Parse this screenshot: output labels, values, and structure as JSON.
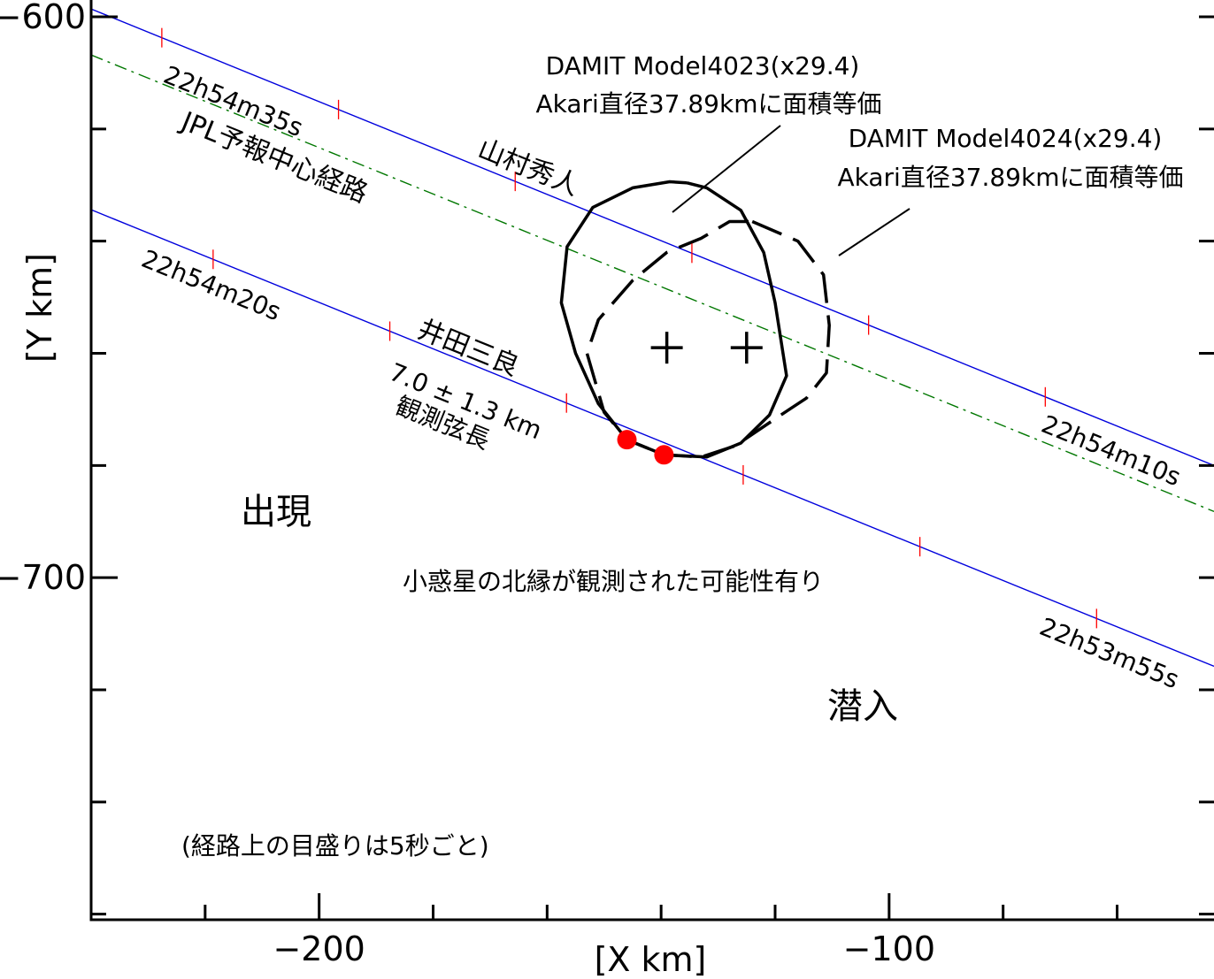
{
  "chart_data": {
    "type": "scatter",
    "xlabel": "[X  km]",
    "ylabel": "[Y  km]",
    "xlim": [
      -240,
      -43
    ],
    "ylim": [
      -761,
      -597
    ],
    "x_ticks": [
      -200,
      -100
    ],
    "y_ticks": [
      -600,
      -700
    ],
    "x_minor_step": 20,
    "y_minor_step": 20,
    "colors": {
      "path": "#0000dd",
      "jpl": "#007700",
      "tick": "#ff0000",
      "outline": "#000000",
      "point": "#ff0000"
    },
    "paths": [
      {
        "label": "山村秀人",
        "color": "#0000dd",
        "dash": "solid",
        "p1": [
          -240,
          -598.6
        ],
        "p2": [
          -43,
          -680.0
        ],
        "ticks_x": [
          -227.6,
          -196.6,
          -165.6,
          -134.6,
          -103.6,
          -72.6,
          -41.6
        ],
        "time_labels": [
          {
            "text": "22h54m35s",
            "at_x": -222
          },
          {
            "text": "22h54m10s",
            "at_x": -74
          }
        ]
      },
      {
        "label": "JPL予報中心経路",
        "color": "#007700",
        "dash": "dashdot",
        "p1": [
          -240,
          -606.8
        ],
        "p2": [
          -43,
          -688.2
        ],
        "ticks_x": [],
        "time_labels": []
      },
      {
        "label": "井田三良",
        "color": "#0000dd",
        "dash": "solid",
        "p1": [
          -240,
          -634.4
        ],
        "p2": [
          -43,
          -715.8
        ],
        "ticks_x": [
          -218.6,
          -187.6,
          -156.6,
          -125.6,
          -94.6,
          -63.6
        ],
        "time_labels": [
          {
            "text": "22h54m20s",
            "at_x": -212
          },
          {
            "text": "22h53m55s",
            "at_x": -65
          }
        ]
      }
    ],
    "events": [
      {
        "name": "disappear",
        "x": -146.0,
        "y": -675.4
      },
      {
        "name": "reappear",
        "x": -139.5,
        "y": -678.1
      }
    ],
    "models": [
      {
        "name": "DAMIT Model4023(x29.4)",
        "note": "Akari直径37.89kmに面積等価",
        "dash": "solid",
        "center": [
          -139,
          -659
        ],
        "outline": [
          [
            -135.5,
            -629.6
          ],
          [
            -132,
            -630.5
          ],
          [
            -126,
            -634.5
          ],
          [
            -122,
            -642
          ],
          [
            -120,
            -651
          ],
          [
            -118,
            -664
          ],
          [
            -121,
            -671
          ],
          [
            -126,
            -676
          ],
          [
            -132,
            -678.5
          ],
          [
            -139.5,
            -678.1
          ],
          [
            -146,
            -675.4
          ],
          [
            -151,
            -669
          ],
          [
            -155,
            -660
          ],
          [
            -157.5,
            -651
          ],
          [
            -156.5,
            -641
          ],
          [
            -152,
            -634
          ],
          [
            -145,
            -630.5
          ],
          [
            -138.5,
            -629.4
          ],
          [
            -135.5,
            -629.6
          ]
        ]
      },
      {
        "name": "DAMIT Model4024(x29.4)",
        "note": "Akari直径37.89kmに面積等価",
        "dash": "dashed",
        "center": [
          -125,
          -659
        ],
        "outline": [
          [
            -124,
            -636.5
          ],
          [
            -116,
            -640
          ],
          [
            -111.5,
            -646
          ],
          [
            -110.5,
            -655
          ],
          [
            -111,
            -663.5
          ],
          [
            -114.5,
            -668
          ],
          [
            -119,
            -671
          ],
          [
            -127,
            -676.5
          ],
          [
            -133,
            -678.5
          ],
          [
            -139.5,
            -678.1
          ],
          [
            -146,
            -675.4
          ],
          [
            -150,
            -670.5
          ],
          [
            -153,
            -660
          ],
          [
            -151,
            -654
          ],
          [
            -145,
            -647
          ],
          [
            -139,
            -642
          ],
          [
            -133,
            -639.5
          ],
          [
            -128,
            -636.5
          ],
          [
            -124,
            -636.5
          ]
        ]
      }
    ],
    "annotations": {
      "appear": "出現",
      "disappear": "潜入",
      "chord": "7.0 ± 1.3 km",
      "chord_label": "観測弦長",
      "north_edge": "小惑星の北縁が観測された可能性有り",
      "tick_note": "(経路上の目盛りは5秒ごと)"
    }
  }
}
